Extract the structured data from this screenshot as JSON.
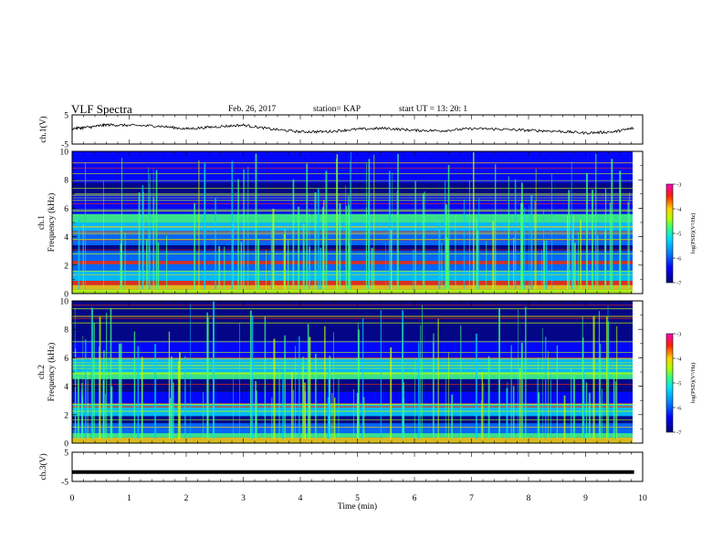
{
  "header": {
    "title": "VLF Spectra",
    "date": "Feb. 26, 2017",
    "station": "station= KAP",
    "start": "start  UT =   13: 20: 1"
  },
  "chart_data": [
    {
      "type": "line",
      "panel": "ch1-waveform",
      "ylabel": "ch.1(V)",
      "ylim": [
        -5,
        5
      ],
      "yticks": [
        "5",
        "-5"
      ],
      "xlim": [
        0,
        10
      ],
      "description_series": [
        {
          "x": [
            0.0,
            0.3,
            0.6,
            1.0,
            1.5,
            2.0,
            2.5,
            3.0,
            3.5,
            4.0,
            4.5,
            5.0,
            5.5,
            6.0,
            6.5,
            7.0,
            7.5,
            8.0,
            8.5,
            9.0,
            9.5,
            9.85
          ],
          "y": [
            0.3,
            0.8,
            1.6,
            1.4,
            1.2,
            0.2,
            0.9,
            1.5,
            0.1,
            -0.8,
            -0.7,
            0.1,
            0.4,
            -0.3,
            -0.4,
            0.3,
            0.1,
            -0.3,
            -0.6,
            -1.2,
            -0.8,
            0.5
          ]
        }
      ]
    },
    {
      "type": "heatmap",
      "panel": "ch1-spectrogram",
      "ylabel": "ch.1\nFrequency (kHz)",
      "ylim": [
        0,
        10
      ],
      "yticks": [
        "0",
        "2",
        "4",
        "6",
        "8",
        "10"
      ],
      "xlim": [
        0,
        10
      ],
      "colorbar": {
        "label": "log(PSD)(V²/Hz)",
        "range": [
          -7,
          -3
        ],
        "ticks": [
          "-3",
          "-4",
          "-5",
          "-6",
          "-7"
        ]
      }
    },
    {
      "type": "heatmap",
      "panel": "ch2-spectrogram",
      "ylabel": "ch.2\nFrequency (kHz)",
      "ylim": [
        0,
        10
      ],
      "yticks": [
        "0",
        "2",
        "4",
        "6",
        "8",
        "10"
      ],
      "xlim": [
        0,
        10
      ],
      "colorbar": {
        "label": "log(PSD)(V²/Hz)",
        "range": [
          -7,
          -3
        ],
        "ticks": [
          "-3",
          "-4",
          "-5",
          "-6",
          "-7"
        ]
      }
    },
    {
      "type": "line",
      "panel": "ch3-waveform",
      "ylabel": "ch.3(V)",
      "ylim": [
        -5,
        5
      ],
      "yticks": [
        "5",
        "-5"
      ],
      "xlim": [
        0,
        10
      ],
      "series": [
        {
          "x": [
            0,
            9.85
          ],
          "y": [
            -1.8,
            -1.8
          ]
        }
      ]
    }
  ],
  "xaxis": {
    "label": "Time (min)",
    "ticks": [
      "0",
      "1",
      "2",
      "3",
      "4",
      "5",
      "6",
      "7",
      "8",
      "9",
      "10"
    ]
  },
  "colors": {
    "scale": [
      "#00007a",
      "#0000ff",
      "#0070ff",
      "#00d0ff",
      "#40ff80",
      "#c0ff00",
      "#ffd000",
      "#ff3000",
      "#ff00a0"
    ]
  }
}
